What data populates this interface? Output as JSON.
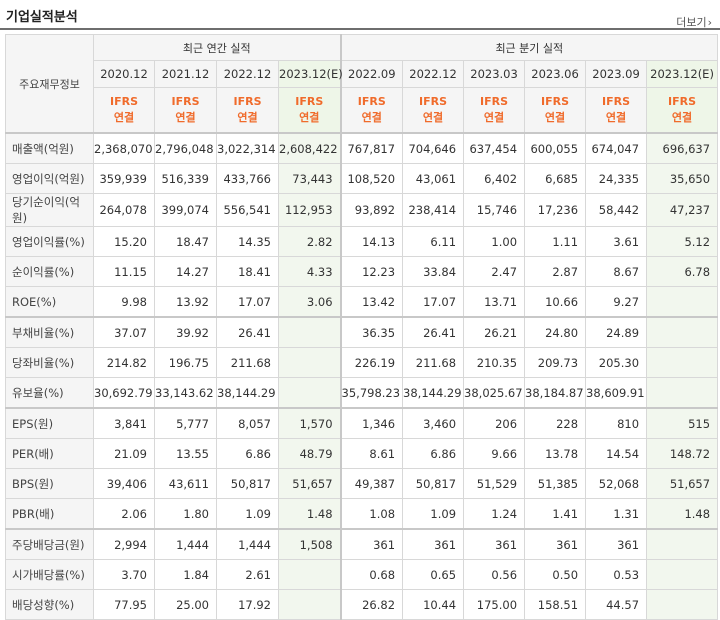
{
  "title": "기업실적분석",
  "more_label": "더보기",
  "corner_label": "주요재무정보",
  "groups": {
    "annual": "최근 연간 실적",
    "quarter": "최근 분기 실적"
  },
  "periods": [
    "2020.12",
    "2021.12",
    "2022.12",
    "2023.12(E)",
    "2022.09",
    "2022.12",
    "2023.03",
    "2023.06",
    "2023.09",
    "2023.12(E)"
  ],
  "ifrs": [
    "IFRS",
    "연결"
  ],
  "rows": [
    {
      "label": "매출액(억원)",
      "values": [
        "2,368,070",
        "2,796,048",
        "3,022,314",
        "2,608,422",
        "767,817",
        "704,646",
        "637,454",
        "600,055",
        "674,047",
        "696,637"
      ]
    },
    {
      "label": "영업이익(억원)",
      "values": [
        "359,939",
        "516,339",
        "433,766",
        "73,443",
        "108,520",
        "43,061",
        "6,402",
        "6,685",
        "24,335",
        "35,650"
      ]
    },
    {
      "label": "당기순이익(억원)",
      "values": [
        "264,078",
        "399,074",
        "556,541",
        "112,953",
        "93,892",
        "238,414",
        "15,746",
        "17,236",
        "58,442",
        "47,237"
      ]
    },
    {
      "label": "영업이익률(%)",
      "values": [
        "15.20",
        "18.47",
        "14.35",
        "2.82",
        "14.13",
        "6.11",
        "1.00",
        "1.11",
        "3.61",
        "5.12"
      ]
    },
    {
      "label": "순이익률(%)",
      "values": [
        "11.15",
        "14.27",
        "18.41",
        "4.33",
        "12.23",
        "33.84",
        "2.47",
        "2.87",
        "8.67",
        "6.78"
      ]
    },
    {
      "label": "ROE(%)",
      "values": [
        "9.98",
        "13.92",
        "17.07",
        "3.06",
        "13.42",
        "17.07",
        "13.71",
        "10.66",
        "9.27",
        ""
      ]
    },
    {
      "label": "부채비율(%)",
      "values": [
        "37.07",
        "39.92",
        "26.41",
        "",
        "36.35",
        "26.41",
        "26.21",
        "24.80",
        "24.89",
        ""
      ]
    },
    {
      "label": "당좌비율(%)",
      "values": [
        "214.82",
        "196.75",
        "211.68",
        "",
        "226.19",
        "211.68",
        "210.35",
        "209.73",
        "205.30",
        ""
      ]
    },
    {
      "label": "유보율(%)",
      "values": [
        "30,692.79",
        "33,143.62",
        "38,144.29",
        "",
        "35,798.23",
        "38,144.29",
        "38,025.67",
        "38,184.87",
        "38,609.91",
        ""
      ]
    },
    {
      "label": "EPS(원)",
      "values": [
        "3,841",
        "5,777",
        "8,057",
        "1,570",
        "1,346",
        "3,460",
        "206",
        "228",
        "810",
        "515"
      ]
    },
    {
      "label": "PER(배)",
      "values": [
        "21.09",
        "13.55",
        "6.86",
        "48.79",
        "8.61",
        "6.86",
        "9.66",
        "13.78",
        "14.54",
        "148.72"
      ]
    },
    {
      "label": "BPS(원)",
      "values": [
        "39,406",
        "43,611",
        "50,817",
        "51,657",
        "49,387",
        "50,817",
        "51,529",
        "51,385",
        "52,068",
        "51,657"
      ]
    },
    {
      "label": "PBR(배)",
      "values": [
        "2.06",
        "1.80",
        "1.09",
        "1.48",
        "1.08",
        "1.09",
        "1.24",
        "1.41",
        "1.31",
        "1.48"
      ]
    },
    {
      "label": "주당배당금(원)",
      "values": [
        "2,994",
        "1,444",
        "1,444",
        "1,508",
        "361",
        "361",
        "361",
        "361",
        "361",
        ""
      ]
    },
    {
      "label": "시가배당률(%)",
      "values": [
        "3.70",
        "1.84",
        "2.61",
        "",
        "0.68",
        "0.65",
        "0.56",
        "0.50",
        "0.53",
        ""
      ]
    },
    {
      "label": "배당성향(%)",
      "values": [
        "77.95",
        "25.00",
        "17.92",
        "",
        "26.82",
        "10.44",
        "175.00",
        "158.51",
        "44.57",
        ""
      ]
    }
  ]
}
